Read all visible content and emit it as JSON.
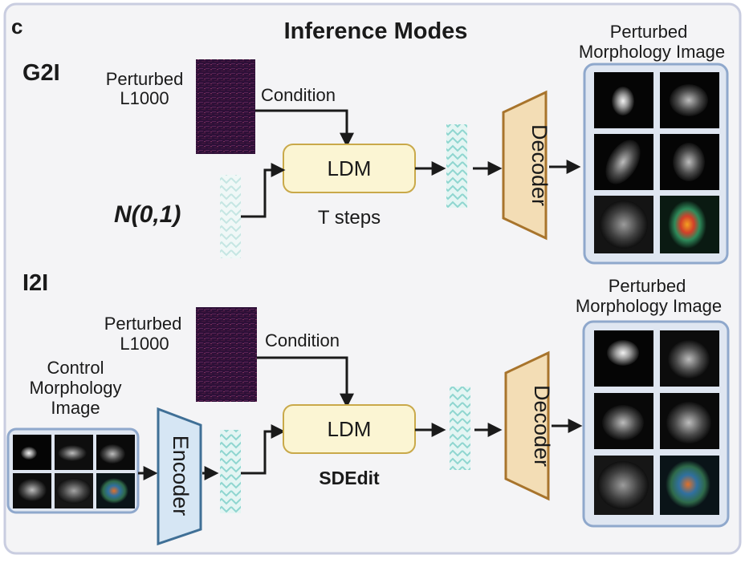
{
  "panel_letter": "c",
  "title": "Inference Modes",
  "g2i": {
    "mode_label": "G2I",
    "input_label_1": "Perturbed",
    "input_label_2": "L1000",
    "condition_label": "Condition",
    "noise_label": "N(0,1)",
    "ldm_label": "LDM",
    "steps_label": "T steps",
    "decoder_label": "Decoder",
    "output_label_1": "Perturbed",
    "output_label_2": "Morphology Image"
  },
  "i2i": {
    "mode_label": "I2I",
    "input_label_1": "Perturbed",
    "input_label_2": "L1000",
    "condition_label": "Condition",
    "control_label_1": "Control",
    "control_label_2": "Morphology",
    "control_label_3": "Image",
    "encoder_label": "Encoder",
    "ldm_label": "LDM",
    "method_label": "SDEdit",
    "decoder_label": "Decoder",
    "output_label_1": "Perturbed",
    "output_label_2": "Morphology Image"
  },
  "colors": {
    "panel_border": "#c9cde0",
    "panel_fill": "#f4f4f6",
    "ldm_fill": "#fbf5d3",
    "ldm_stroke": "#c9a94a",
    "decoder_fill": "#f3ddb5",
    "decoder_stroke": "#a8742c",
    "encoder_fill": "#d6e6f4",
    "encoder_stroke": "#3f6f96",
    "latent": "#8fd6d0",
    "heatmap": "#2e1038",
    "image_frame": "#8fa8cc"
  }
}
